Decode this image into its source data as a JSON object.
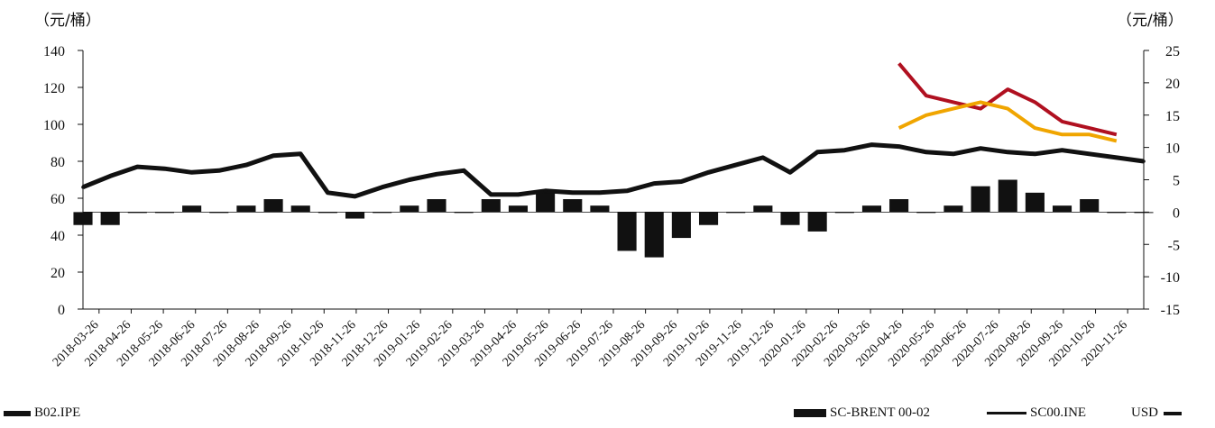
{
  "units": {
    "left": "（元/桶）",
    "right": "（元/桶）"
  },
  "chart_data": {
    "type": "line",
    "title": "",
    "y_left": {
      "ticks": [
        0,
        20,
        40,
        60,
        80,
        100,
        120,
        140
      ],
      "range": [
        0,
        140
      ]
    },
    "y_right": {
      "ticks": [
        -15,
        -10,
        -5,
        0,
        5,
        10,
        15,
        20,
        25
      ],
      "range": [
        -15,
        25
      ]
    },
    "x_tick_labels": [
      "2018-03-26",
      "2018-04-26",
      "2018-05-26",
      "2018-06-26",
      "2018-07-26",
      "2018-08-26",
      "2018-09-26",
      "2018-10-26",
      "2018-11-26",
      "2018-12-26",
      "2019-01-26",
      "2019-02-26",
      "2019-03-26",
      "2019-04-26",
      "2019-05-26",
      "2019-06-26",
      "2019-07-26",
      "2019-08-26",
      "2019-09-26",
      "2019-10-26",
      "2019-11-26",
      "2019-12-26",
      "2020-01-26",
      "2020-02-26",
      "2020-03-26",
      "2020-04-26",
      "2020-05-26",
      "2020-06-26",
      "2020-07-26",
      "2020-08-26",
      "2020-09-26",
      "2020-10-26",
      "2020-11-26"
    ],
    "series": [
      {
        "name": "B02.IPE",
        "axis": "left",
        "color": "#111111",
        "values": [
          66,
          72,
          77,
          76,
          74,
          75,
          78,
          83,
          84,
          63,
          61,
          66,
          70,
          73,
          75,
          62,
          62,
          64,
          63,
          63,
          64,
          68,
          69,
          74,
          78,
          82,
          74,
          85,
          86,
          89,
          88,
          85,
          84,
          87,
          85,
          84,
          86,
          84,
          82,
          80
        ]
      },
      {
        "name": "SC-BRENT 00-02",
        "axis": "right",
        "color": "#111111",
        "values": [
          -2,
          -2,
          0,
          0,
          1,
          0,
          1,
          2,
          1,
          0,
          -1,
          0,
          1,
          2,
          0,
          2,
          1,
          3,
          2,
          1,
          -6,
          -7,
          -4,
          -2,
          0,
          1,
          -2,
          -3,
          0,
          1,
          2,
          0,
          1,
          4,
          5,
          3,
          1,
          2,
          0,
          0
        ]
      },
      {
        "name": "SC00.INE",
        "axis": "right",
        "color": "#b01020",
        "values": [
          null,
          null,
          null,
          null,
          null,
          null,
          null,
          null,
          null,
          null,
          null,
          null,
          null,
          null,
          null,
          null,
          null,
          null,
          null,
          null,
          null,
          null,
          null,
          null,
          null,
          null,
          null,
          null,
          null,
          null,
          23,
          18,
          17,
          16,
          19,
          17,
          14,
          13,
          12,
          null
        ]
      },
      {
        "name": "USD",
        "axis": "right",
        "color": "#f0a500",
        "values": [
          null,
          null,
          null,
          null,
          null,
          null,
          null,
          null,
          null,
          null,
          null,
          null,
          null,
          null,
          null,
          null,
          null,
          null,
          null,
          null,
          null,
          null,
          null,
          null,
          null,
          null,
          null,
          null,
          null,
          null,
          13,
          15,
          16,
          17,
          16,
          13,
          12,
          12,
          11,
          null
        ]
      }
    ],
    "legend_position": "bottom"
  },
  "legend": [
    {
      "label": "B02.IPE"
    },
    {
      "label": "SC-BRENT 00-02"
    },
    {
      "label": "SC00.INE"
    },
    {
      "label": "USD"
    }
  ]
}
